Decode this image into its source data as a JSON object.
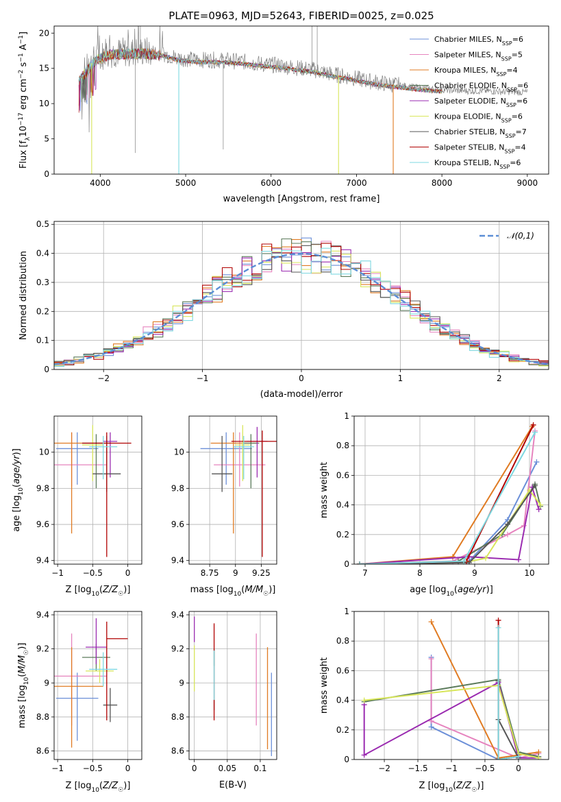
{
  "figure_title": "PLATE=0963, MJD=52643, FIBERID=0025, z=0.025",
  "colors": {
    "chabrier_miles": "#6b8fd8",
    "salpeter_miles": "#e683be",
    "kroupa_miles": "#e07b22",
    "chabrier_elodie": "#5a7a5a",
    "salpeter_elodie": "#9a2ab0",
    "kroupa_elodie": "#d8e65a",
    "chabrier_stelib": "#555555",
    "salpeter_stelib": "#b00000",
    "kroupa_stelib": "#7dd8e0",
    "normal_fit": "#5b8ed6"
  },
  "chart_data": [
    {
      "id": "spectrum",
      "type": "line",
      "title": "PLATE=0963, MJD=52643, FIBERID=0025, z=0.025",
      "xlabel": "wavelength [Angstrom, rest frame]",
      "ylabel": "Flux [f_λ 10^-17 erg cm^-2 s^-1 A^-1]",
      "xlim": [
        3460,
        9250
      ],
      "ylim": [
        0,
        21
      ],
      "xticks": [
        4000,
        5000,
        6000,
        7000,
        8000,
        9000
      ],
      "yticks": [
        0,
        5,
        10,
        15,
        20
      ],
      "grid": false,
      "legend_position": "top-right",
      "legend": [
        {
          "name": "Chabrier MILES",
          "nssp": "6",
          "color_key": "chabrier_miles"
        },
        {
          "name": "Salpeter MILES",
          "nssp": "5",
          "color_key": "salpeter_miles"
        },
        {
          "name": "Kroupa MILES",
          "nssp": "4",
          "color_key": "kroupa_miles"
        },
        {
          "name": "Chabrier ELODIE",
          "nssp": "6",
          "color_key": "chabrier_elodie"
        },
        {
          "name": "Salpeter ELODIE",
          "nssp": "6",
          "color_key": "salpeter_elodie"
        },
        {
          "name": "Kroupa ELODIE",
          "nssp": "6",
          "color_key": "kroupa_elodie"
        },
        {
          "name": "Chabrier STELIB",
          "nssp": "7",
          "color_key": "chabrier_stelib"
        },
        {
          "name": "Salpeter STELIB",
          "nssp": "4",
          "color_key": "salpeter_stelib"
        },
        {
          "name": "Kroupa STELIB",
          "nssp": "6",
          "color_key": "kroupa_stelib"
        }
      ],
      "continuum": [
        [
          3750,
          13.5
        ],
        [
          3850,
          15.0
        ],
        [
          3950,
          16.5
        ],
        [
          4100,
          17.2
        ],
        [
          4300,
          17.3
        ],
        [
          4500,
          17.4
        ],
        [
          4700,
          17.2
        ],
        [
          4900,
          16.5
        ],
        [
          5100,
          16.2
        ],
        [
          5300,
          16.2
        ],
        [
          5500,
          16.1
        ],
        [
          5700,
          15.9
        ],
        [
          5900,
          15.6
        ],
        [
          6100,
          15.4
        ],
        [
          6300,
          15.1
        ],
        [
          6500,
          14.8
        ],
        [
          6700,
          14.2
        ],
        [
          6900,
          13.8
        ],
        [
          7100,
          13.3
        ],
        [
          7300,
          12.9
        ],
        [
          7500,
          12.6
        ],
        [
          7700,
          12.3
        ],
        [
          7900,
          12.1
        ],
        [
          8100,
          11.9
        ],
        [
          8300,
          11.8
        ],
        [
          8500,
          11.8
        ],
        [
          8700,
          11.7
        ],
        [
          9000,
          11.6
        ]
      ],
      "model_wavelength_range": [
        3750,
        8000
      ],
      "data_wavelength_range": [
        3750,
        9000
      ],
      "dropouts": [
        {
          "x": 3900,
          "y": 0,
          "color_key": "kroupa_elodie"
        },
        {
          "x": 4920,
          "y": 0,
          "color_key": "kroupa_stelib"
        },
        {
          "x": 6790,
          "y": 0,
          "color_key": "kroupa_elodie"
        },
        {
          "x": 7430,
          "y": 0,
          "color_key": "kroupa_miles"
        }
      ]
    },
    {
      "id": "residuals",
      "type": "histogram",
      "xlabel": "(data-model)/error",
      "ylabel": "Normed distribution",
      "xlim": [
        -2.5,
        2.5
      ],
      "ylim": [
        0,
        0.51
      ],
      "xticks": [
        -2,
        -1,
        0,
        1,
        2
      ],
      "yticks": [
        0.0,
        0.1,
        0.2,
        0.3,
        0.4,
        0.5
      ],
      "grid": true,
      "legend_position": "top-right",
      "reference_curve": {
        "label": "𝒩(0,1)",
        "mean": 0,
        "sigma": 1,
        "color_key": "normal_fit"
      },
      "bin_width": 0.1
    },
    {
      "id": "age_vs_z",
      "type": "errorbar",
      "xlabel": "Z [log10(Z/Z☉)]",
      "ylabel": "age [log10(age/yr)]",
      "xlim": [
        -1.05,
        0.2
      ],
      "ylim": [
        9.38,
        10.2
      ],
      "xticks": [
        -1.0,
        -0.5,
        0.0
      ],
      "yticks": [
        9.4,
        9.6,
        9.8,
        10.0
      ],
      "grid": true,
      "points": [
        {
          "key": "chabrier_miles",
          "x": -0.72,
          "xerr": 0.3,
          "y": 10.02,
          "yerr": [
            0.2,
            0.09
          ]
        },
        {
          "key": "salpeter_miles",
          "x": -0.8,
          "xerr": 0.5,
          "y": 9.93,
          "yerr": [
            0.12,
            0.18
          ]
        },
        {
          "key": "kroupa_miles",
          "x": -0.8,
          "xerr": 0.45,
          "y": 10.05,
          "yerr": [
            0.5,
            0.06
          ]
        },
        {
          "key": "chabrier_elodie",
          "x": -0.45,
          "xerr": 0.2,
          "y": 10.05,
          "yerr": [
            0.25,
            0.05
          ]
        },
        {
          "key": "salpeter_elodie",
          "x": -0.25,
          "xerr": 0.1,
          "y": 10.06,
          "yerr": [
            0.2,
            0.05
          ]
        },
        {
          "key": "kroupa_elodie",
          "x": -0.5,
          "xerr": 0.15,
          "y": 10.04,
          "yerr": [
            0.2,
            0.11
          ]
        },
        {
          "key": "chabrier_stelib",
          "x": -0.3,
          "xerr": 0.2,
          "y": 9.88,
          "yerr": [
            0.1,
            0.21
          ]
        },
        {
          "key": "salpeter_stelib",
          "x": -0.3,
          "xerr": 0.35,
          "y": 10.05,
          "yerr": [
            0.63,
            0.06
          ]
        },
        {
          "key": "kroupa_stelib",
          "x": -0.35,
          "xerr": 0.2,
          "y": 10.03,
          "yerr": [
            0.18,
            0.06
          ]
        }
      ]
    },
    {
      "id": "age_vs_mass",
      "type": "errorbar",
      "xlabel": "mass [log10(M/M☉)]",
      "ylabel": "",
      "xlim": [
        8.55,
        9.4
      ],
      "ylim": [
        9.38,
        10.2
      ],
      "xticks": [
        8.75,
        9.0,
        9.25
      ],
      "yticks": [
        9.4,
        9.6,
        9.8,
        10.0
      ],
      "grid": true,
      "points": [
        {
          "key": "chabrier_miles",
          "x": 8.91,
          "xerr": 0.25,
          "y": 10.02,
          "yerr": [
            0.2,
            0.09
          ]
        },
        {
          "key": "salpeter_miles",
          "x": 9.04,
          "xerr": 0.25,
          "y": 9.93,
          "yerr": [
            0.12,
            0.18
          ]
        },
        {
          "key": "kroupa_miles",
          "x": 8.98,
          "xerr": 0.22,
          "y": 10.05,
          "yerr": [
            0.5,
            0.06
          ]
        },
        {
          "key": "chabrier_elodie",
          "x": 9.15,
          "xerr": 0.08,
          "y": 10.05,
          "yerr": [
            0.25,
            0.05
          ]
        },
        {
          "key": "salpeter_elodie",
          "x": 9.21,
          "xerr": 0.1,
          "y": 10.06,
          "yerr": [
            0.2,
            0.08
          ]
        },
        {
          "key": "kroupa_elodie",
          "x": 9.07,
          "xerr": 0.07,
          "y": 10.04,
          "yerr": [
            0.2,
            0.11
          ]
        },
        {
          "key": "chabrier_stelib",
          "x": 8.87,
          "xerr": 0.1,
          "y": 9.88,
          "yerr": [
            0.1,
            0.21
          ]
        },
        {
          "key": "salpeter_stelib",
          "x": 9.26,
          "xerr": 0.3,
          "y": 10.06,
          "yerr": [
            0.64,
            0.06
          ]
        },
        {
          "key": "kroupa_stelib",
          "x": 9.08,
          "xerr": 0.1,
          "y": 10.03,
          "yerr": [
            0.18,
            0.06
          ]
        }
      ]
    },
    {
      "id": "massweight_vs_age",
      "type": "line",
      "xlabel": "age [log10(age/yr)]",
      "ylabel": "mass weight",
      "xlim": [
        6.8,
        10.35
      ],
      "ylim": [
        0,
        1.0
      ],
      "xticks": [
        7,
        8,
        9,
        10
      ],
      "yticks": [
        0.0,
        0.2,
        0.4,
        0.6,
        0.8,
        1.0
      ],
      "grid": true,
      "series": [
        {
          "key": "chabrier_miles",
          "x": [
            6.9,
            8.9,
            9.6,
            10.13
          ],
          "y": [
            0.0,
            0.02,
            0.3,
            0.69
          ]
        },
        {
          "key": "salpeter_miles",
          "x": [
            6.9,
            8.6,
            9.6,
            9.9,
            10.1
          ],
          "y": [
            0.0,
            0.02,
            0.2,
            0.26,
            0.9
          ]
        },
        {
          "key": "kroupa_miles",
          "x": [
            6.9,
            8.6,
            10.05
          ],
          "y": [
            0.0,
            0.05,
            0.93
          ]
        },
        {
          "key": "chabrier_elodie",
          "x": [
            6.9,
            8.7,
            9.5,
            10.1,
            10.2
          ],
          "y": [
            0.0,
            0.02,
            0.2,
            0.54,
            0.39
          ]
        },
        {
          "key": "salpeter_elodie",
          "x": [
            6.9,
            8.9,
            9.8,
            10.05,
            10.17
          ],
          "y": [
            0.0,
            0.05,
            0.03,
            0.52,
            0.37
          ]
        },
        {
          "key": "kroupa_elodie",
          "x": [
            6.9,
            8.8,
            9.2,
            10.0,
            10.2
          ],
          "y": [
            0.0,
            0.01,
            0.04,
            0.5,
            0.4
          ]
        },
        {
          "key": "chabrier_stelib",
          "x": [
            6.9,
            8.9,
            9.6,
            10.1
          ],
          "y": [
            0.0,
            0.01,
            0.27,
            0.53
          ]
        },
        {
          "key": "salpeter_stelib",
          "x": [
            6.9,
            8.85,
            10.07
          ],
          "y": [
            0.0,
            0.02,
            0.94
          ]
        },
        {
          "key": "kroupa_stelib",
          "x": [
            6.9,
            8.8,
            10.1
          ],
          "y": [
            0.0,
            0.02,
            0.89
          ]
        }
      ]
    },
    {
      "id": "mass_vs_z",
      "type": "errorbar",
      "xlabel": "Z [log10(Z/Z☉)]",
      "ylabel": "mass [log10(M/M☉)]",
      "xlim": [
        -1.05,
        0.2
      ],
      "ylim": [
        8.55,
        9.42
      ],
      "xticks": [
        -1.0,
        -0.5,
        0.0
      ],
      "yticks": [
        8.6,
        8.8,
        9.0,
        9.2,
        9.4
      ],
      "grid": true,
      "points": [
        {
          "key": "chabrier_miles",
          "x": -0.72,
          "xerr": 0.3,
          "y": 8.91,
          "yerr": [
            0.25,
            0.15
          ]
        },
        {
          "key": "salpeter_miles",
          "x": -0.8,
          "xerr": 0.5,
          "y": 9.04,
          "yerr": [
            0.29,
            0.25
          ]
        },
        {
          "key": "kroupa_miles",
          "x": -0.8,
          "xerr": 0.45,
          "y": 8.98,
          "yerr": [
            0.36,
            0.23
          ]
        },
        {
          "key": "chabrier_elodie",
          "x": -0.45,
          "xerr": 0.2,
          "y": 9.15,
          "yerr": [
            0.08,
            0.08
          ]
        },
        {
          "key": "salpeter_elodie",
          "x": -0.45,
          "xerr": 0.15,
          "y": 9.21,
          "yerr": [
            0.1,
            0.17
          ]
        },
        {
          "key": "kroupa_elodie",
          "x": -0.4,
          "xerr": 0.2,
          "y": 9.07,
          "yerr": [
            0.07,
            0.07
          ]
        },
        {
          "key": "chabrier_stelib",
          "x": -0.25,
          "xerr": 0.1,
          "y": 8.87,
          "yerr": [
            0.1,
            0.1
          ]
        },
        {
          "key": "salpeter_stelib",
          "x": -0.3,
          "xerr": 0.0,
          "y": 9.26,
          "yerr": [
            0.48,
            0.1
          ],
          "xerr_right": 0.3
        },
        {
          "key": "kroupa_stelib",
          "x": -0.35,
          "xerr": 0.2,
          "y": 9.08,
          "yerr": [
            0.1,
            0.1
          ]
        }
      ]
    },
    {
      "id": "mass_vs_ebv",
      "type": "errorbar",
      "xlabel": "E(B-V)",
      "ylabel": "",
      "xlim": [
        -0.008,
        0.125
      ],
      "ylim": [
        8.55,
        9.42
      ],
      "xticks": [
        0.0,
        0.05,
        0.1
      ],
      "yticks": [
        8.6,
        8.8,
        9.0,
        9.2,
        9.4
      ],
      "grid": true,
      "points": [
        {
          "key": "chabrier_miles",
          "x": 0.117,
          "xerr": 0.0,
          "y": 8.82,
          "yerr": [
            0.25,
            0.24
          ]
        },
        {
          "key": "salpeter_miles",
          "x": 0.094,
          "xerr": 0.0,
          "y": 9.02,
          "yerr": [
            0.27,
            0.27
          ]
        },
        {
          "key": "kroupa_miles",
          "x": 0.111,
          "xerr": 0.0,
          "y": 8.91,
          "yerr": [
            0.3,
            0.3
          ]
        },
        {
          "key": "chabrier_elodie",
          "x": 0.03,
          "xerr": 0.0,
          "y": 9.15,
          "yerr": [
            0.05,
            0.05
          ]
        },
        {
          "key": "salpeter_elodie",
          "x": 0.0,
          "xerr": 0.0,
          "y": 9.32,
          "yerr": [
            0.08,
            0.07
          ]
        },
        {
          "key": "kroupa_elodie",
          "x": 0.0,
          "xerr": 0.0,
          "y": 9.08,
          "yerr": [
            0.13,
            0.14
          ]
        },
        {
          "key": "chabrier_stelib",
          "x": 0.03,
          "xerr": 0.0,
          "y": 8.87,
          "yerr": [
            0.03,
            0.03
          ]
        },
        {
          "key": "salpeter_stelib",
          "x": 0.03,
          "xerr": 0.0,
          "y": 9.06,
          "yerr": [
            0.28,
            0.29
          ]
        },
        {
          "key": "kroupa_stelib",
          "x": 0.03,
          "xerr": 0.0,
          "y": 9.05,
          "yerr": [
            0.15,
            0.14
          ]
        }
      ]
    },
    {
      "id": "massweight_vs_z",
      "type": "line",
      "xlabel": "Z [log10(Z/Z☉)]",
      "ylabel": "mass weight",
      "xlim": [
        -2.45,
        0.45
      ],
      "ylim": [
        0,
        1.0
      ],
      "xticks": [
        -2.0,
        -1.5,
        -1.0,
        -0.5,
        0.0
      ],
      "yticks": [
        0.0,
        0.2,
        0.4,
        0.6,
        0.8,
        1.0
      ],
      "grid": true,
      "series": [
        {
          "key": "chabrier_miles",
          "x": [
            -1.3,
            -1.3,
            -0.3,
            0.0
          ],
          "y": [
            0.69,
            0.22,
            0.0,
            0.02
          ]
        },
        {
          "key": "salpeter_miles",
          "x": [
            -1.3,
            -1.3,
            0.0,
            0.3
          ],
          "y": [
            0.68,
            0.26,
            0.01,
            0.04
          ]
        },
        {
          "key": "kroupa_miles",
          "x": [
            -1.3,
            -0.3,
            0.3
          ],
          "y": [
            0.93,
            0.01,
            0.05
          ]
        },
        {
          "key": "chabrier_elodie",
          "x": [
            -2.3,
            -0.3,
            0.0,
            0.3
          ],
          "y": [
            0.39,
            0.54,
            0.05,
            0.02
          ]
        },
        {
          "key": "salpeter_elodie",
          "x": [
            -2.3,
            -2.3,
            -0.3,
            0.0,
            0.3
          ],
          "y": [
            0.37,
            0.03,
            0.52,
            0.01,
            0.01
          ]
        },
        {
          "key": "kroupa_elodie",
          "x": [
            -2.3,
            -0.3,
            0.0,
            0.3
          ],
          "y": [
            0.4,
            0.5,
            0.04,
            0.01
          ]
        },
        {
          "key": "chabrier_stelib",
          "x": [
            -0.3,
            -0.3,
            0.0
          ],
          "y": [
            0.53,
            0.27,
            0.01
          ]
        },
        {
          "key": "salpeter_stelib",
          "x": [
            -0.3,
            -0.3,
            0.0
          ],
          "y": [
            0.94,
            0.0,
            0.02
          ]
        },
        {
          "key": "kroupa_stelib",
          "x": [
            -0.3,
            -0.3,
            0.0
          ],
          "y": [
            0.89,
            0.0,
            0.02
          ]
        }
      ]
    }
  ]
}
